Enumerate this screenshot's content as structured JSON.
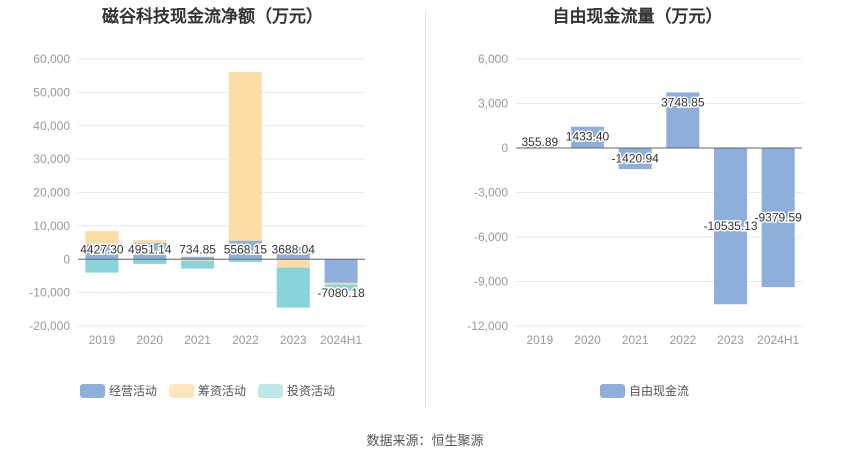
{
  "source_label": "数据来源：恒生聚源",
  "chart_data": [
    {
      "type": "bar",
      "stacked": true,
      "title": "磁谷科技现金流净额（万元）",
      "categories": [
        "2019",
        "2020",
        "2021",
        "2022",
        "2023",
        "2024H1"
      ],
      "ylim": [
        -20000,
        60000
      ],
      "yticks": [
        -20000,
        -10000,
        0,
        10000,
        20000,
        30000,
        40000,
        50000,
        60000
      ],
      "ytick_labels": [
        "-20,000",
        "-10,000",
        "0",
        "10,000",
        "20,000",
        "30,000",
        "40,000",
        "50,000",
        "60,000"
      ],
      "grid": true,
      "legend_position": "bottom-left",
      "series": [
        {
          "name": "经营活动",
          "color": "#8eaedb",
          "values": [
            4427.3,
            4951.14,
            734.85,
            5568.15,
            3688.04,
            -7080.18
          ]
        },
        {
          "name": "筹资活动",
          "color": "#fcdda6",
          "values": [
            4000,
            800,
            -500,
            50500,
            -2500,
            -500
          ]
        },
        {
          "name": "投资活动",
          "color": "#89d4d8",
          "values": [
            -4000,
            -1400,
            -2300,
            -800,
            -12000,
            -2000
          ]
        }
      ],
      "data_labels": [
        "4427.30",
        "4951.14",
        "734.85",
        "5568.15",
        "3688.04",
        "-7080.18"
      ]
    },
    {
      "type": "bar",
      "title": "自由现金流量（万元）",
      "categories": [
        "2019",
        "2020",
        "2021",
        "2022",
        "2023",
        "2024H1"
      ],
      "ylim": [
        -12000,
        6000
      ],
      "yticks": [
        -12000,
        -9000,
        -6000,
        -3000,
        0,
        3000,
        6000
      ],
      "ytick_labels": [
        "-12,000",
        "-9,000",
        "-6,000",
        "-3,000",
        "0",
        "3,000",
        "6,000"
      ],
      "grid": true,
      "legend_position": "bottom",
      "series": [
        {
          "name": "自由现金流",
          "color": "#8eaedb",
          "values": [
            355.89,
            1433.4,
            -1420.94,
            3748.85,
            -10535.13,
            -9379.59
          ]
        }
      ],
      "data_labels": [
        "355.89",
        "1433.40",
        "-1420.94",
        "3748.85",
        "-10535.13",
        "-9379.59"
      ]
    }
  ]
}
